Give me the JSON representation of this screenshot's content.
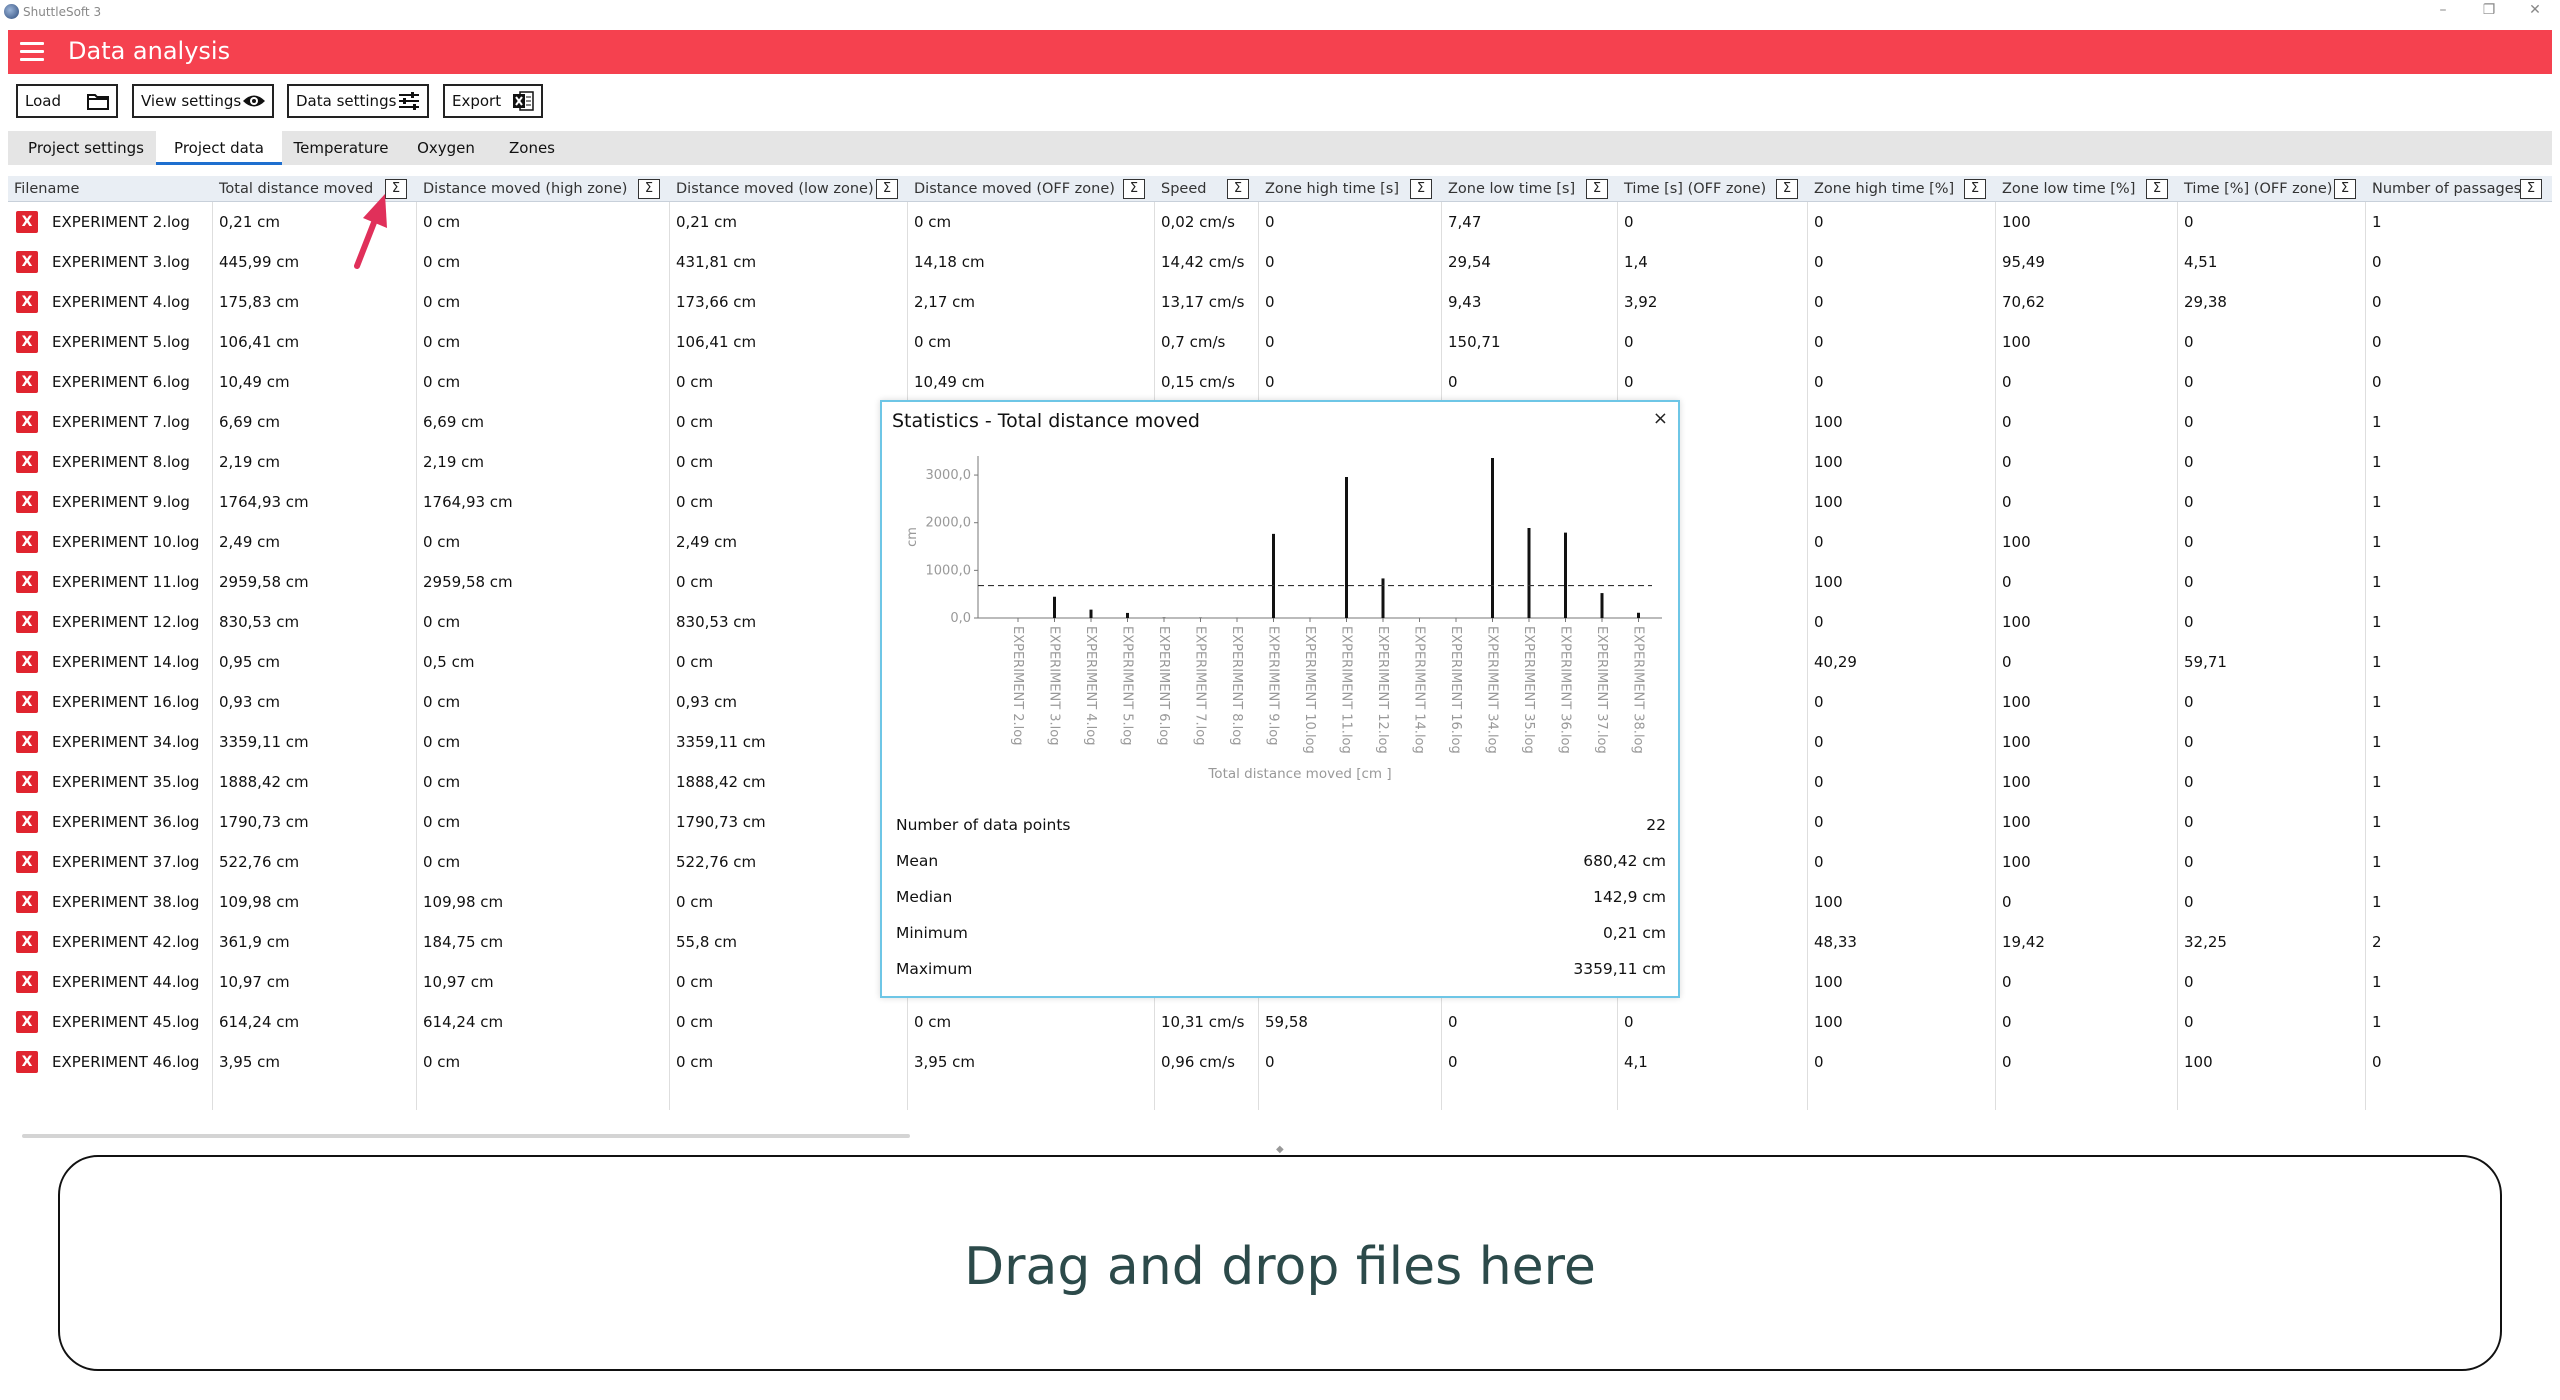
{
  "window": {
    "app_title": "ShuttleSoft 3",
    "controls": [
      "–",
      "❐",
      "✕"
    ]
  },
  "appbar": {
    "title": "Data analysis",
    "color": "#f5414f"
  },
  "toolbar": {
    "load": "Load",
    "view_settings": "View settings",
    "data_settings": "Data settings",
    "export": "Export"
  },
  "tabs": [
    {
      "label": "Project settings",
      "active": false
    },
    {
      "label": "Project data",
      "active": true
    },
    {
      "label": "Temperature",
      "active": false
    },
    {
      "label": "Oxygen",
      "active": false
    },
    {
      "label": "Zones",
      "active": false
    }
  ],
  "grid": {
    "columns": [
      "Filename",
      "Total distance moved",
      "Distance moved (high zone)",
      "Distance moved (low zone)",
      "Distance moved (OFF zone)",
      "Speed",
      "Zone high time [s]",
      "Zone low time [s]",
      "Time [s] (OFF zone)",
      "Zone high time [%]",
      "Zone low time [%]",
      "Time [%] (OFF zone)",
      "Number of passages"
    ],
    "sigma": "Σ",
    "remove_icon": "X",
    "rows": [
      [
        "EXPERIMENT 2.log",
        "0,21 cm",
        "0 cm",
        "0,21 cm",
        "0 cm",
        "0,02 cm/s",
        "0",
        "7,47",
        "0",
        "0",
        "100",
        "0",
        "1"
      ],
      [
        "EXPERIMENT 3.log",
        "445,99 cm",
        "0 cm",
        "431,81 cm",
        "14,18 cm",
        "14,42 cm/s",
        "0",
        "29,54",
        "1,4",
        "0",
        "95,49",
        "4,51",
        "0"
      ],
      [
        "EXPERIMENT 4.log",
        "175,83 cm",
        "0 cm",
        "173,66 cm",
        "2,17 cm",
        "13,17 cm/s",
        "0",
        "9,43",
        "3,92",
        "0",
        "70,62",
        "29,38",
        "0"
      ],
      [
        "EXPERIMENT 5.log",
        "106,41 cm",
        "0 cm",
        "106,41 cm",
        "0 cm",
        "0,7 cm/s",
        "0",
        "150,71",
        "0",
        "0",
        "100",
        "0",
        "0"
      ],
      [
        "EXPERIMENT 6.log",
        "10,49 cm",
        "0 cm",
        "0 cm",
        "10,49 cm",
        "0,15 cm/s",
        "0",
        "0",
        "0",
        "0",
        "0",
        "0",
        "0"
      ],
      [
        "EXPERIMENT 7.log",
        "6,69 cm",
        "6,69 cm",
        "0 cm",
        "",
        "",
        "",
        "",
        "",
        "100",
        "0",
        "0",
        "1"
      ],
      [
        "EXPERIMENT 8.log",
        "2,19 cm",
        "2,19 cm",
        "0 cm",
        "",
        "",
        "",
        "",
        "",
        "100",
        "0",
        "0",
        "1"
      ],
      [
        "EXPERIMENT 9.log",
        "1764,93 cm",
        "1764,93 cm",
        "0 cm",
        "",
        "",
        "",
        "",
        "",
        "100",
        "0",
        "0",
        "1"
      ],
      [
        "EXPERIMENT 10.log",
        "2,49 cm",
        "0 cm",
        "2,49 cm",
        "",
        "",
        "",
        "",
        "",
        "0",
        "100",
        "0",
        "1"
      ],
      [
        "EXPERIMENT 11.log",
        "2959,58 cm",
        "2959,58 cm",
        "0 cm",
        "",
        "",
        "",
        "",
        "",
        "100",
        "0",
        "0",
        "1"
      ],
      [
        "EXPERIMENT 12.log",
        "830,53 cm",
        "0 cm",
        "830,53 cm",
        "",
        "",
        "",
        "",
        "",
        "0",
        "100",
        "0",
        "1"
      ],
      [
        "EXPERIMENT 14.log",
        "0,95 cm",
        "0,5 cm",
        "0 cm",
        "",
        "",
        "",
        "",
        "",
        "40,29",
        "0",
        "59,71",
        "1"
      ],
      [
        "EXPERIMENT 16.log",
        "0,93 cm",
        "0 cm",
        "0,93 cm",
        "",
        "",
        "",
        "",
        "",
        "0",
        "100",
        "0",
        "1"
      ],
      [
        "EXPERIMENT 34.log",
        "3359,11 cm",
        "0 cm",
        "3359,11 cm",
        "",
        "",
        "",
        "",
        "",
        "0",
        "100",
        "0",
        "1"
      ],
      [
        "EXPERIMENT 35.log",
        "1888,42 cm",
        "0 cm",
        "1888,42 cm",
        "",
        "",
        "",
        "",
        "",
        "0",
        "100",
        "0",
        "1"
      ],
      [
        "EXPERIMENT 36.log",
        "1790,73 cm",
        "0 cm",
        "1790,73 cm",
        "",
        "",
        "",
        "",
        "",
        "0",
        "100",
        "0",
        "1"
      ],
      [
        "EXPERIMENT 37.log",
        "522,76 cm",
        "0 cm",
        "522,76 cm",
        "",
        "",
        "",
        "",
        "",
        "0",
        "100",
        "0",
        "1"
      ],
      [
        "EXPERIMENT 38.log",
        "109,98 cm",
        "109,98 cm",
        "0 cm",
        "",
        "",
        "",
        "",
        "",
        "100",
        "0",
        "0",
        "1"
      ],
      [
        "EXPERIMENT 42.log",
        "361,9 cm",
        "184,75 cm",
        "55,8 cm",
        "",
        "",
        "",
        "",
        "",
        "48,33",
        "19,42",
        "32,25",
        "2"
      ],
      [
        "EXPERIMENT 44.log",
        "10,97 cm",
        "10,97 cm",
        "0 cm",
        "",
        "",
        "",
        "",
        "",
        "100",
        "0",
        "0",
        "1"
      ],
      [
        "EXPERIMENT 45.log",
        "614,24 cm",
        "614,24 cm",
        "0 cm",
        "0 cm",
        "10,31 cm/s",
        "59,58",
        "0",
        "0",
        "100",
        "0",
        "0",
        "1"
      ],
      [
        "EXPERIMENT 46.log",
        "3,95 cm",
        "0 cm",
        "0 cm",
        "3,95 cm",
        "0,96 cm/s",
        "0",
        "0",
        "4,1",
        "0",
        "0",
        "100",
        "0"
      ]
    ]
  },
  "popup": {
    "title": "Statistics - Total distance moved",
    "close": "×",
    "stats": [
      {
        "label": "Number of data points",
        "value": "22"
      },
      {
        "label": "Mean",
        "value": "680,42 cm"
      },
      {
        "label": "Median",
        "value": "142,9 cm"
      },
      {
        "label": "Minimum",
        "value": "0,21 cm"
      },
      {
        "label": "Maximum",
        "value": "3359,11 cm"
      }
    ]
  },
  "chart_data": {
    "type": "bar",
    "xlabel": "Total distance moved [cm ]",
    "ylabel": "cm",
    "yticks": [
      "0,0",
      "1000,0",
      "2000,0",
      "3000,0"
    ],
    "ylim": [
      0,
      3400
    ],
    "mean_line": 680.42,
    "categories": [
      "EXPERIMENT 2.log",
      "EXPERIMENT 3.log",
      "EXPERIMENT 4.log",
      "EXPERIMENT 5.log",
      "EXPERIMENT 6.log",
      "EXPERIMENT 7.log",
      "EXPERIMENT 8.log",
      "EXPERIMENT 9.log",
      "EXPERIMENT 10.log",
      "EXPERIMENT 11.log",
      "EXPERIMENT 12.log",
      "EXPERIMENT 14.log",
      "EXPERIMENT 16.log",
      "EXPERIMENT 34.log",
      "EXPERIMENT 35.log",
      "EXPERIMENT 36.log",
      "EXPERIMENT 37.log",
      "EXPERIMENT 38.log"
    ],
    "values": [
      0.21,
      445.99,
      175.83,
      106.41,
      10.49,
      6.69,
      2.19,
      1764.93,
      2.49,
      2959.58,
      830.53,
      0.95,
      0.93,
      3359.11,
      1888.42,
      1790.73,
      522.76,
      109.98
    ]
  },
  "dropzone": {
    "text": "Drag and drop files here"
  }
}
